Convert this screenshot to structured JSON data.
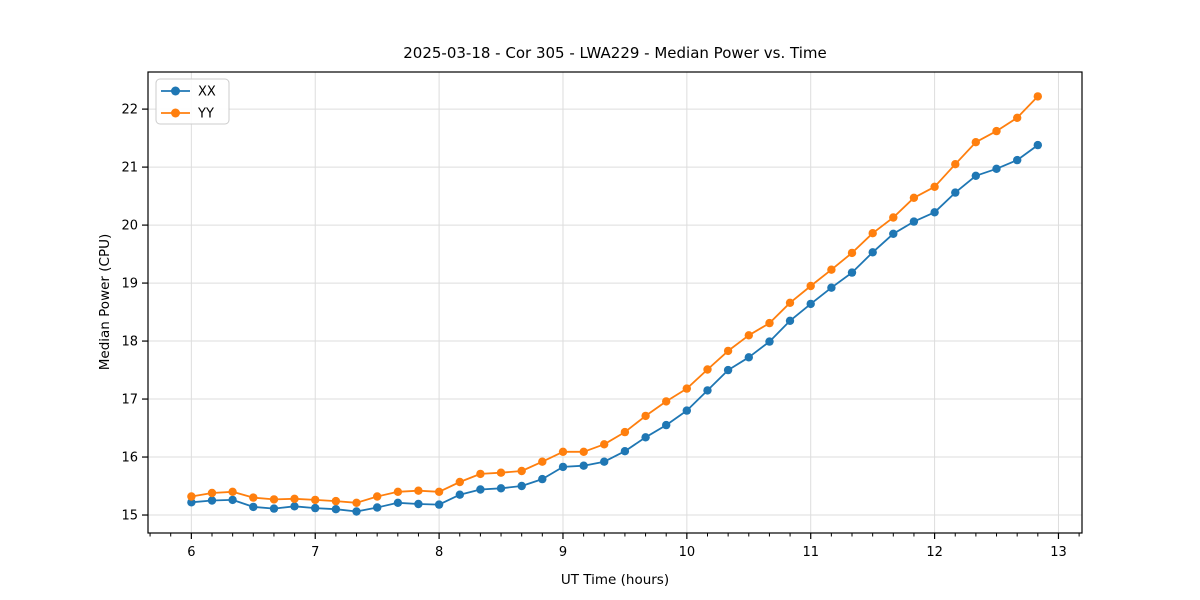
{
  "figure": {
    "title": "2025-03-18 - Cor 305 - LWA229 - Median Power vs. Time"
  },
  "chart_data": {
    "type": "line",
    "title": "2025-03-18 - Cor 305 - LWA229 - Median Power vs. Time",
    "xlabel": "UT Time (hours)",
    "ylabel": "Median Power (CPU)",
    "legend": {
      "position": "upper left",
      "entries": [
        "XX",
        "YY"
      ]
    },
    "grid": "major",
    "xlim": [
      5.65,
      13.19
    ],
    "ylim": [
      14.69,
      22.64
    ],
    "xticks": [
      6,
      7,
      8,
      9,
      10,
      11,
      12,
      13
    ],
    "yticks": [
      15,
      16,
      17,
      18,
      19,
      20,
      21,
      22
    ],
    "x_minor_tick_step": 0.1666667,
    "x": [
      6.0,
      6.167,
      6.333,
      6.5,
      6.667,
      6.833,
      7.0,
      7.167,
      7.333,
      7.5,
      7.667,
      7.833,
      8.0,
      8.167,
      8.333,
      8.5,
      8.667,
      8.833,
      9.0,
      9.167,
      9.333,
      9.5,
      9.667,
      9.833,
      10.0,
      10.167,
      10.333,
      10.5,
      10.667,
      10.833,
      11.0,
      11.167,
      11.333,
      11.5,
      11.667,
      11.833,
      12.0,
      12.167,
      12.333,
      12.5,
      12.667,
      12.833
    ],
    "series": [
      {
        "name": "XX",
        "color": "#1f77b4",
        "marker": "circle",
        "values": [
          15.22,
          15.25,
          15.26,
          15.14,
          15.11,
          15.15,
          15.12,
          15.1,
          15.06,
          15.13,
          15.21,
          15.19,
          15.18,
          15.35,
          15.44,
          15.46,
          15.5,
          15.62,
          15.83,
          15.85,
          15.92,
          16.1,
          16.34,
          16.55,
          16.8,
          17.15,
          17.5,
          17.72,
          17.99,
          18.35,
          18.64,
          18.92,
          19.18,
          19.53,
          19.85,
          20.06,
          20.22,
          20.56,
          20.85,
          20.97,
          21.12,
          21.38
        ]
      },
      {
        "name": "YY",
        "color": "#ff7f0e",
        "marker": "circle",
        "values": [
          15.32,
          15.38,
          15.4,
          15.3,
          15.27,
          15.28,
          15.26,
          15.24,
          15.21,
          15.32,
          15.4,
          15.42,
          15.4,
          15.57,
          15.71,
          15.73,
          15.76,
          15.92,
          16.09,
          16.09,
          16.22,
          16.43,
          16.71,
          16.96,
          17.18,
          17.51,
          17.83,
          18.1,
          18.31,
          18.66,
          18.95,
          19.23,
          19.52,
          19.86,
          20.13,
          20.47,
          20.66,
          21.05,
          21.43,
          21.62,
          21.85,
          22.22
        ]
      }
    ]
  },
  "style": {
    "background": "#ffffff",
    "grid_color": "#dddddd",
    "spine_color": "#000000",
    "tick_color": "#000000",
    "text_color": "#000000",
    "legend_border": "#cccccc",
    "legend_background": "#ffffff"
  }
}
